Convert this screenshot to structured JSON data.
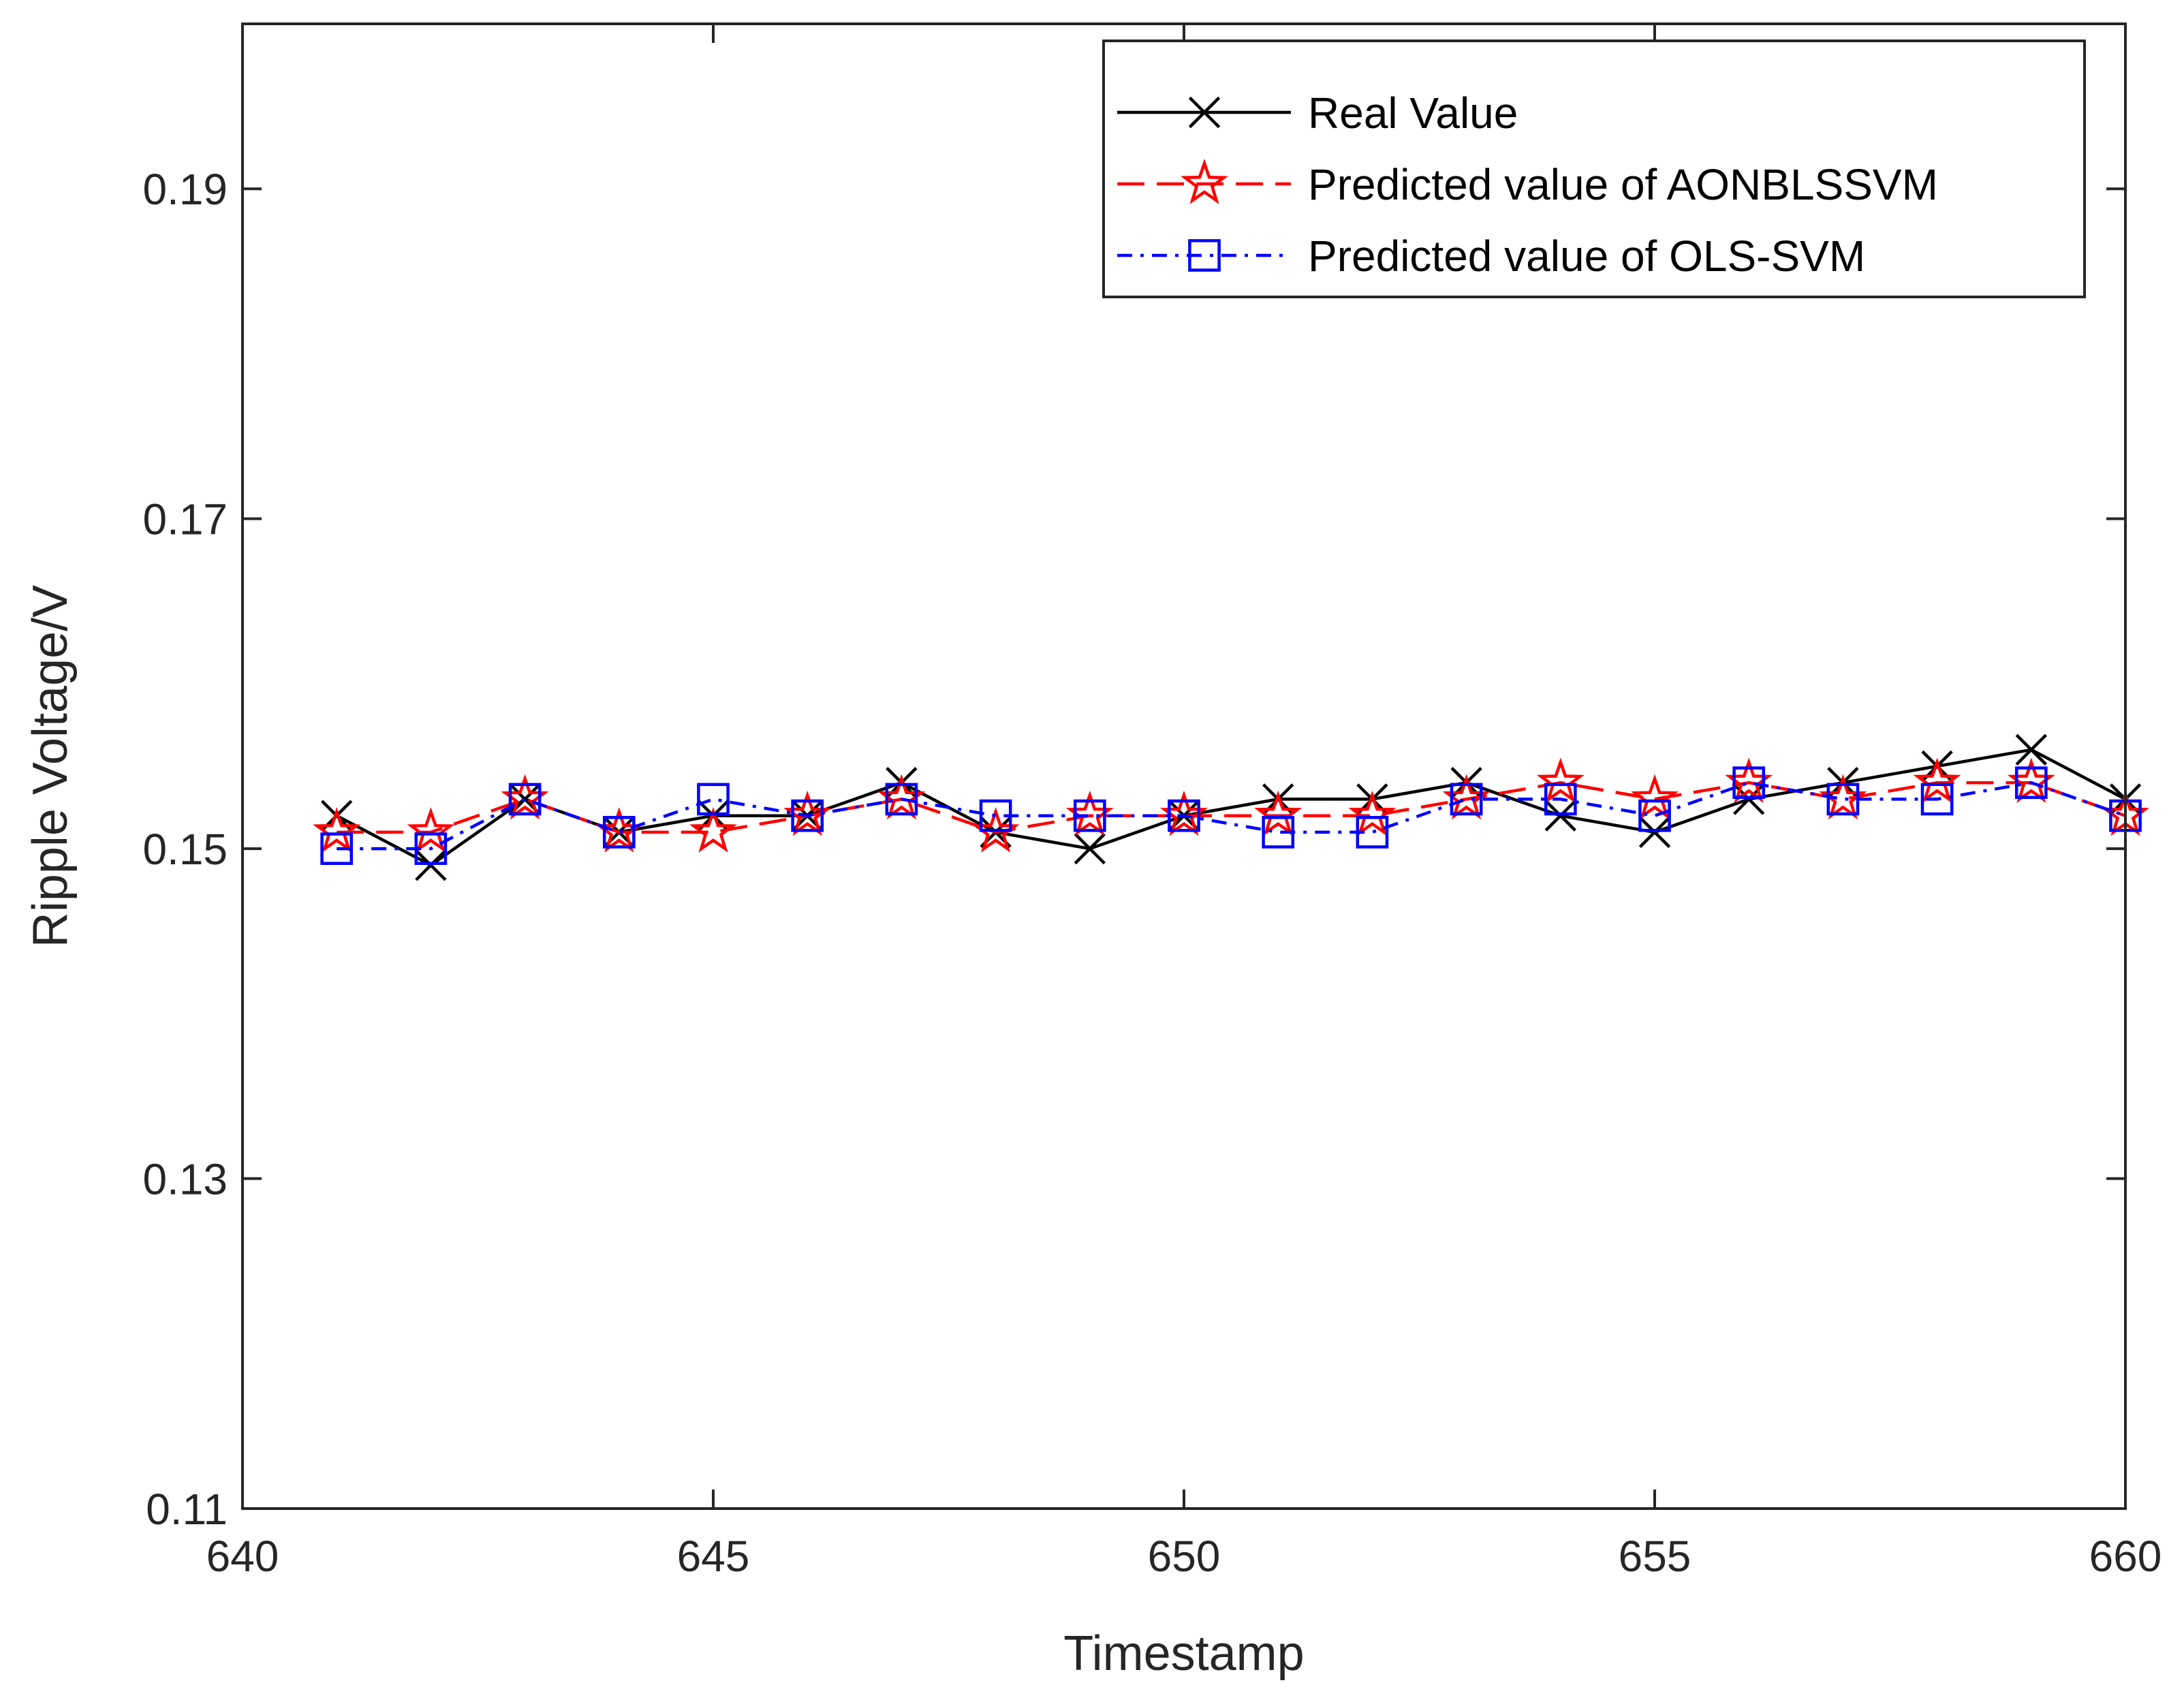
{
  "chart_data": {
    "type": "line",
    "title": "",
    "xlabel": "Timestamp",
    "ylabel": "Ripple Voltage/V",
    "xlim": [
      640,
      660
    ],
    "ylim": [
      0.11,
      0.2
    ],
    "xticks": [
      640,
      645,
      650,
      655,
      660
    ],
    "xtick_labels": [
      "640",
      "645",
      "650",
      "655",
      "660"
    ],
    "yticks": [
      0.11,
      0.13,
      0.15,
      0.17,
      0.19
    ],
    "ytick_labels": [
      "0.11",
      "0.13",
      "0.15",
      "0.17",
      "0.19"
    ],
    "grid": false,
    "legend_position": "top-right",
    "x": [
      641,
      642,
      643,
      644,
      645,
      646,
      647,
      648,
      649,
      650,
      651,
      652,
      653,
      654,
      655,
      656,
      657,
      658,
      659,
      660
    ],
    "series": [
      {
        "name": "Real  Value",
        "color": "#000000",
        "line_style": "solid",
        "marker": "x",
        "values": [
          0.152,
          0.149,
          0.153,
          0.151,
          0.152,
          0.152,
          0.154,
          0.151,
          0.15,
          0.152,
          0.153,
          0.153,
          0.154,
          0.152,
          0.151,
          0.153,
          0.154,
          0.155,
          0.156,
          0.153
        ]
      },
      {
        "name": "Predicted value of AONBLSSVM",
        "color": "#ff0000",
        "line_style": "dashed",
        "marker": "star",
        "values": [
          0.151,
          0.151,
          0.153,
          0.151,
          0.151,
          0.152,
          0.153,
          0.151,
          0.152,
          0.152,
          0.152,
          0.152,
          0.153,
          0.154,
          0.153,
          0.154,
          0.153,
          0.154,
          0.154,
          0.152
        ]
      },
      {
        "name": "Predicted value of OLS-SVM",
        "color": "#0000ff",
        "line_style": "dashdot",
        "marker": "square",
        "values": [
          0.15,
          0.15,
          0.153,
          0.151,
          0.153,
          0.152,
          0.153,
          0.152,
          0.152,
          0.152,
          0.151,
          0.151,
          0.153,
          0.153,
          0.152,
          0.154,
          0.153,
          0.153,
          0.154,
          0.152
        ]
      }
    ]
  }
}
